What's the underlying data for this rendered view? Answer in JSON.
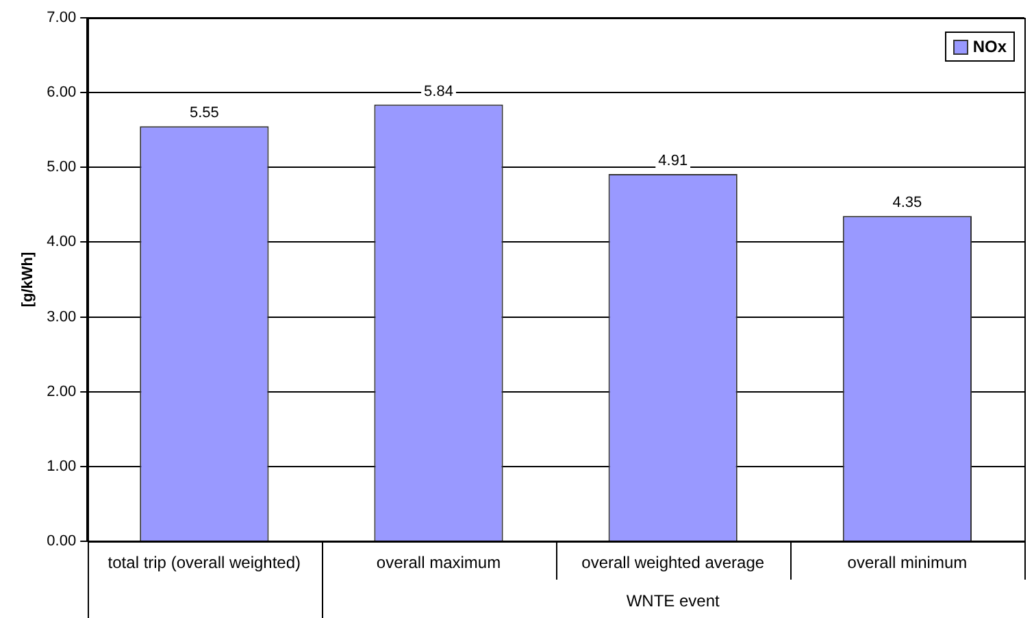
{
  "chart_data": {
    "type": "bar",
    "ylabel": "[g/kWh]",
    "categories": [
      "total trip (overall weighted)",
      "overall maximum",
      "overall weighted average",
      "overall minimum"
    ],
    "series": [
      {
        "name": "NOx",
        "color": "#9999ff",
        "values": [
          5.55,
          5.84,
          4.91,
          4.35
        ]
      }
    ],
    "ylim": [
      0,
      7
    ],
    "yticks": [
      {
        "value": 0,
        "label": "0.00"
      },
      {
        "value": 1,
        "label": "1.00"
      },
      {
        "value": 2,
        "label": "2.00"
      },
      {
        "value": 3,
        "label": "3.00"
      },
      {
        "value": 4,
        "label": "4.00"
      },
      {
        "value": 5,
        "label": "5.00"
      },
      {
        "value": 6,
        "label": "6.00"
      },
      {
        "value": 7,
        "label": "7.00"
      }
    ],
    "grid": "y",
    "legend": "top right",
    "data_labels": true,
    "annotations": [
      "WNTE event"
    ]
  }
}
